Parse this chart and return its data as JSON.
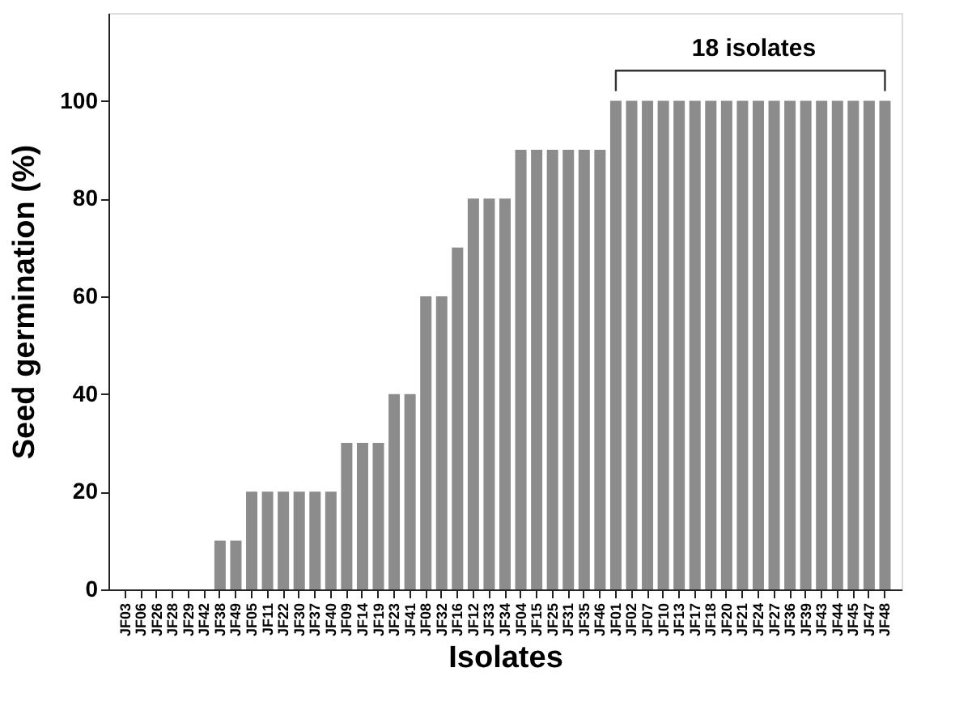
{
  "chart_data": {
    "type": "bar",
    "categories": [
      "JF03",
      "JF06",
      "JF26",
      "JF28",
      "JF29",
      "JF42",
      "JF38",
      "JF49",
      "JF05",
      "JF11",
      "JF22",
      "JF30",
      "JF37",
      "JF40",
      "JF09",
      "JF14",
      "JF19",
      "JF23",
      "JF41",
      "JF08",
      "JF32",
      "JF16",
      "JF12",
      "JF33",
      "JF34",
      "JF04",
      "JF15",
      "JF25",
      "JF31",
      "JF35",
      "JF46",
      "JF01",
      "JF02",
      "JF07",
      "JF10",
      "JF13",
      "JF17",
      "JF18",
      "JF20",
      "JF21",
      "JF24",
      "JF27",
      "JF36",
      "JF39",
      "JF43",
      "JF44",
      "JF45",
      "JF47",
      "JF48"
    ],
    "values": [
      0,
      0,
      0,
      0,
      0,
      0,
      10,
      10,
      20,
      20,
      20,
      20,
      20,
      20,
      30,
      30,
      30,
      40,
      40,
      60,
      60,
      70,
      80,
      80,
      80,
      90,
      90,
      90,
      90,
      90,
      90,
      100,
      100,
      100,
      100,
      100,
      100,
      100,
      100,
      100,
      100,
      100,
      100,
      100,
      100,
      100,
      100,
      100,
      100
    ],
    "color": "#8c8c8c",
    "xlabel": "Isolates",
    "ylabel": "Seed germination (%)",
    "ylim": [
      0,
      118
    ],
    "yticks": [
      0,
      20,
      40,
      60,
      80,
      100
    ],
    "annotations": [
      "18 isolates"
    ],
    "grid": false
  }
}
